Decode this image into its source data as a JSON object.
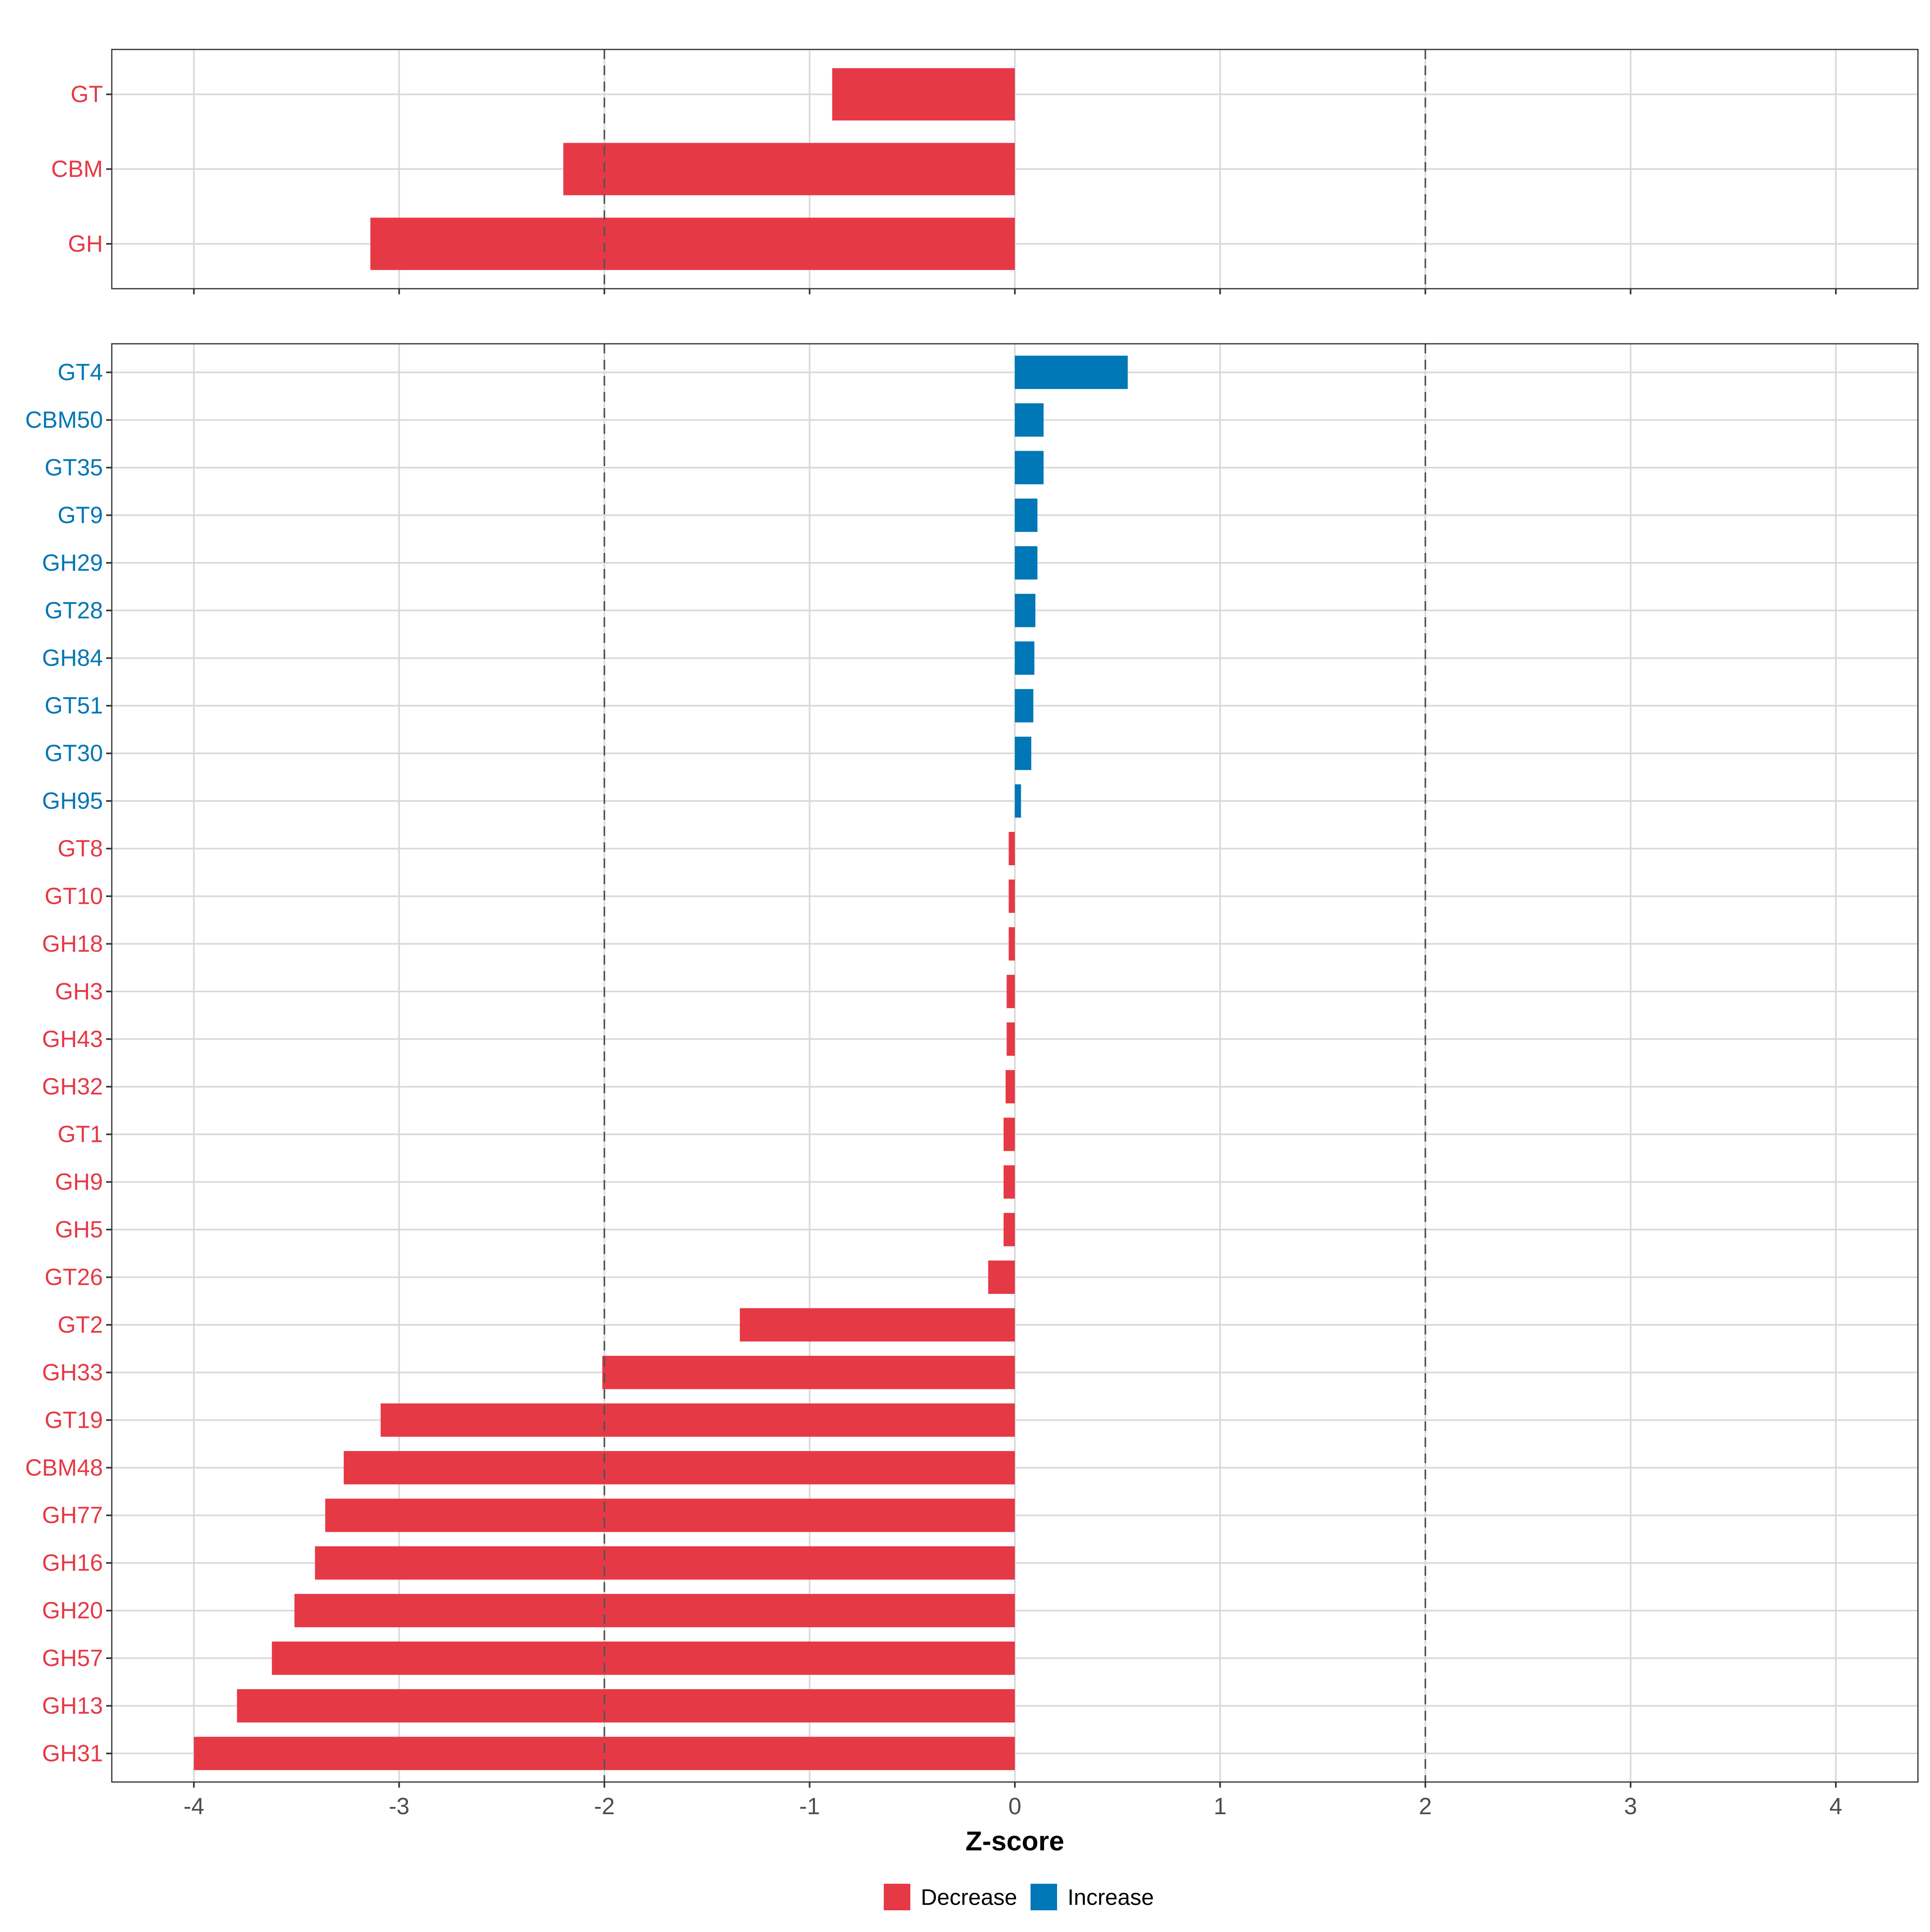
{
  "colors": {
    "decrease": "#E63946",
    "increase": "#0077B6"
  },
  "chart_data": [
    {
      "type": "bar",
      "orientation": "horizontal",
      "categories": [
        "GT",
        "CBM",
        "GH"
      ],
      "values": [
        -0.89,
        -2.2,
        -3.14
      ],
      "xlim": [
        -4.4,
        4.4
      ],
      "reference_lines": [
        -2,
        2
      ],
      "grid": true
    },
    {
      "type": "bar",
      "orientation": "horizontal",
      "categories": [
        "GT4",
        "CBM50",
        "GT35",
        "GT9",
        "GH29",
        "GT28",
        "GH84",
        "GT51",
        "GT30",
        "GH95",
        "GT8",
        "GT10",
        "GH18",
        "GH3",
        "GH43",
        "GH32",
        "GT1",
        "GH9",
        "GH5",
        "GT26",
        "GT2",
        "GH33",
        "GT19",
        "CBM48",
        "GH77",
        "GH16",
        "GH20",
        "GH57",
        "GH13",
        "GH31"
      ],
      "values": [
        0.55,
        0.14,
        0.14,
        0.11,
        0.11,
        0.1,
        0.095,
        0.09,
        0.08,
        0.03,
        -0.03,
        -0.03,
        -0.03,
        -0.04,
        -0.04,
        -0.045,
        -0.055,
        -0.055,
        -0.055,
        -0.13,
        -1.34,
        -2.01,
        -3.09,
        -3.27,
        -3.36,
        -3.41,
        -3.51,
        -3.62,
        -3.79,
        -4.0
      ],
      "xlim": [
        -4.4,
        4.4
      ],
      "reference_lines": [
        -2,
        2
      ],
      "grid": true,
      "xlabel": "Z-score",
      "xticks": [
        "-4",
        "-3",
        "-2",
        "-1",
        "0",
        "1",
        "2",
        "3",
        "4"
      ],
      "legend": {
        "position": "bottom",
        "entries": [
          "Decrease",
          "Increase"
        ]
      }
    }
  ]
}
